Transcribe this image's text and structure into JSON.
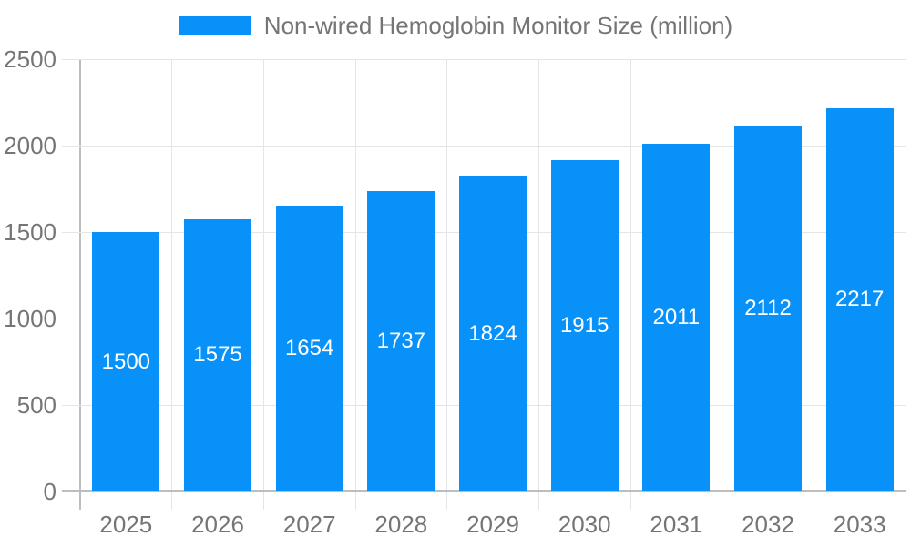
{
  "legend": {
    "label": "Non-wired Hemoglobin Monitor Size (million)"
  },
  "chart_data": {
    "type": "bar",
    "title": "",
    "series_name": "Non-wired Hemoglobin Monitor Size (million)",
    "categories": [
      "2025",
      "2026",
      "2027",
      "2028",
      "2029",
      "2030",
      "2031",
      "2032",
      "2033"
    ],
    "values": [
      1500,
      1575,
      1654,
      1737,
      1824,
      1915,
      2011,
      2112,
      2217
    ],
    "value_labels": [
      "1500",
      "1575",
      "1654",
      "1737",
      "1824",
      "1915",
      "2011",
      "2112",
      "2217"
    ],
    "xlabel": "",
    "ylabel": "",
    "ylim": [
      0,
      2500
    ],
    "y_ticks": [
      0,
      500,
      1000,
      1500,
      2000,
      2500
    ],
    "grid": "both",
    "legend_position": "top",
    "colors": {
      "bar": "#0991fa",
      "bar_value_text": "#ffffff",
      "axis_text": "#757575",
      "legend_text": "#757575",
      "gridline": "#e5e5e5",
      "axis_line": "#bdbdbd"
    }
  }
}
